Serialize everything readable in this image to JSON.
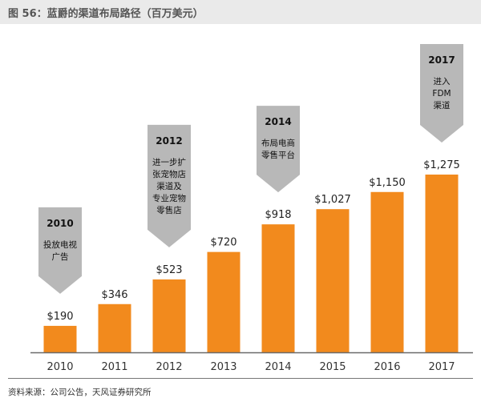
{
  "title": "图 56：蓝爵的渠道布局路径（百万美元）",
  "source": "资料来源：公司公告，天风证券研究所",
  "colors": {
    "bar": "#f28a1d",
    "callout": "#b8b8b8",
    "axis": "#6a6a6a"
  },
  "chart_data": {
    "type": "bar",
    "title": "图 56：蓝爵的渠道布局路径（百万美元）",
    "categories": [
      "2010",
      "2011",
      "2012",
      "2013",
      "2014",
      "2015",
      "2016",
      "2017"
    ],
    "values": [
      190,
      346,
      523,
      720,
      918,
      1027,
      1150,
      1275
    ],
    "value_labels": [
      "$190",
      "$346",
      "$523",
      "$720",
      "$918",
      "$1,027",
      "$1,150",
      "$1,275"
    ],
    "ylim": [
      0,
      1275
    ],
    "grid": false,
    "annotations": [
      {
        "category": "2010",
        "year": "2010",
        "lines": [
          "投放电视",
          "广告"
        ]
      },
      {
        "category": "2012",
        "year": "2012",
        "lines": [
          "进一步扩",
          "张宠物店",
          "渠道及",
          "专业宠物",
          "零售店"
        ]
      },
      {
        "category": "2014",
        "year": "2014",
        "lines": [
          "布局电商",
          "零售平台"
        ]
      },
      {
        "category": "2017",
        "year": "2017",
        "lines": [
          "进入",
          "FDM",
          "渠道"
        ]
      }
    ]
  }
}
